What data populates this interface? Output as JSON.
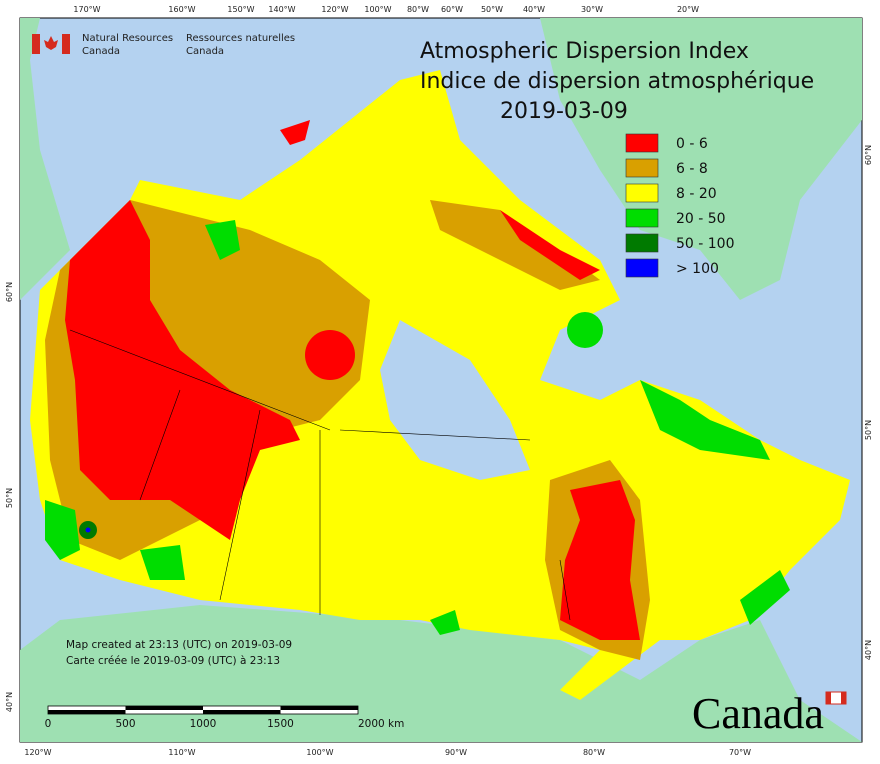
{
  "header": {
    "agency_en": [
      "Natural Resources",
      "Canada"
    ],
    "agency_fr": [
      "Ressources naturelles",
      "Canada"
    ],
    "title_en": "Atmospheric Dispersion Index",
    "title_fr": "Indice de dispersion atmosphérique",
    "date": "2019-03-09"
  },
  "legend": [
    {
      "label": "0 - 6",
      "color": "#ff0000"
    },
    {
      "label": "6 - 8",
      "color": "#d9a000"
    },
    {
      "label": "8 - 20",
      "color": "#ffff00"
    },
    {
      "label": "20 - 50",
      "color": "#00dd00"
    },
    {
      "label": "50 - 100",
      "color": "#007a00"
    },
    {
      "label": "> 100",
      "color": "#0000ff"
    }
  ],
  "notes": [
    "Map created at 23:13 (UTC) on 2019-03-09",
    "Carte créée le 2019-03-09 (UTC) à 23:13"
  ],
  "scale": [
    "0",
    "500",
    "1000",
    "1500",
    "2000 km"
  ],
  "graticule": {
    "top": [
      "170°W",
      "160°W",
      "150°W",
      "140°W",
      "120°W",
      "100°W",
      "80°W",
      "60°W",
      "50°W",
      "40°W",
      "30°W",
      "20°W"
    ],
    "bottom": [
      "120°W",
      "110°W",
      "100°W",
      "90°W",
      "80°W",
      "70°W"
    ],
    "left": [
      "60°N",
      "50°N",
      "40°N"
    ],
    "right": [
      "60°N",
      "50°N",
      "40°N"
    ]
  },
  "wordmark": "Canada"
}
